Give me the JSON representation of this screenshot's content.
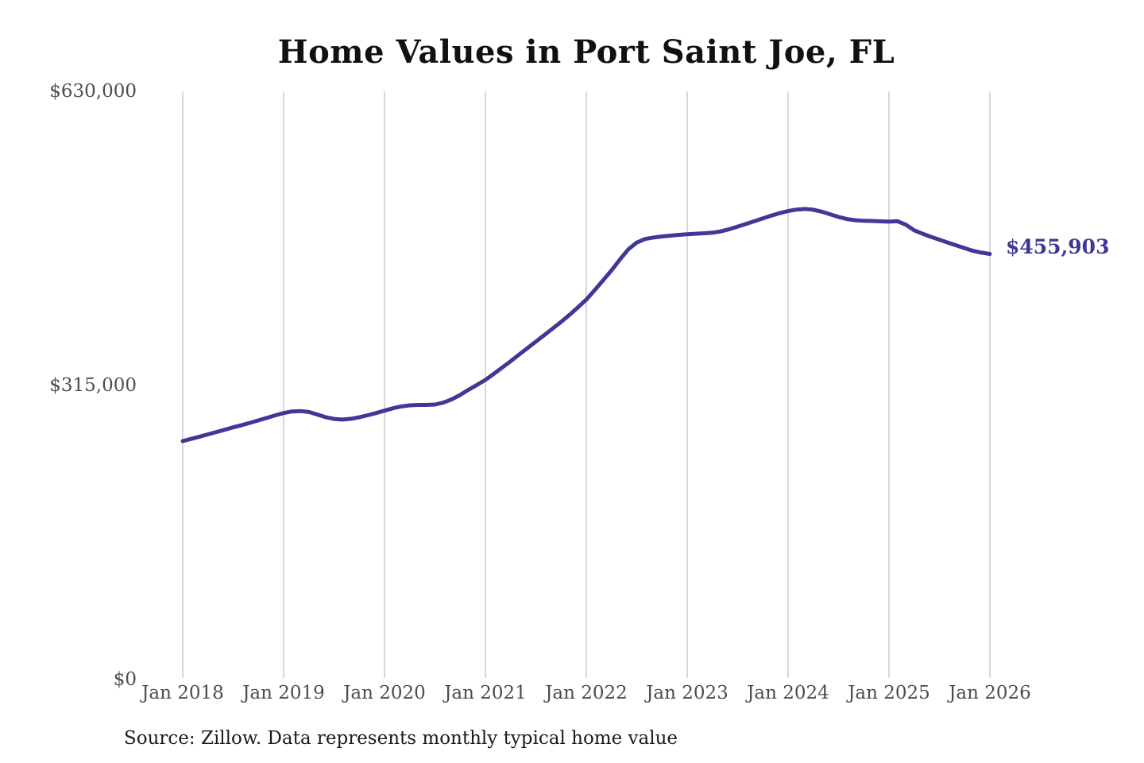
{
  "title": "Home Values in Port Saint Joe, FL",
  "source_note": "Source: Zillow. Data represents monthly typical home value",
  "end_label": "$455,903",
  "colors": {
    "line": "#3f3896",
    "grid": "#cccccc",
    "axis_text": "#4d4d4d",
    "title_text": "#111111",
    "source_text": "#1b1b1b",
    "background": "#ffffff"
  },
  "chart_data": {
    "type": "line",
    "title": "Home Values in Port Saint Joe, FL",
    "xlabel": "",
    "ylabel": "",
    "grid": "vertical-only",
    "legend": "none",
    "ylim": [
      0,
      630000
    ],
    "y_ticks": [
      0,
      315000,
      630000
    ],
    "y_tick_labels": [
      "$0",
      "$315,000",
      "$630,000"
    ],
    "x_tick_labels": [
      "Jan 2018",
      "Jan 2019",
      "Jan 2020",
      "Jan 2021",
      "Jan 2022",
      "Jan 2023",
      "Jan 2024",
      "Jan 2025",
      "Jan 2026"
    ],
    "x_start_month": "2018-01",
    "x_end_month": "2026-01",
    "final_value": 455903,
    "final_value_label": "$455,903",
    "series": [
      {
        "name": "Monthly typical home value",
        "monthly_values": [
          255400,
          257800,
          260200,
          262600,
          265100,
          267600,
          270100,
          272500,
          275000,
          277600,
          280300,
          283000,
          285500,
          287200,
          287600,
          286600,
          283900,
          281000,
          279200,
          278500,
          279300,
          281000,
          283100,
          285500,
          288000,
          290600,
          292600,
          293700,
          294100,
          294100,
          294600,
          296700,
          300200,
          304900,
          310500,
          315600,
          321000,
          327500,
          334200,
          341000,
          348000,
          355000,
          362000,
          369000,
          376000,
          383100,
          390600,
          398600,
          407000,
          417200,
          427700,
          438400,
          449900,
          460800,
          468100,
          471900,
          473500,
          474600,
          475500,
          476300,
          477000,
          477500,
          478000,
          478600,
          480100,
          482400,
          485200,
          488100,
          491100,
          494000,
          496900,
          499600,
          501900,
          503400,
          504100,
          503200,
          501200,
          498400,
          495600,
          493300,
          492000,
          491500,
          491200,
          490800,
          490500,
          491000,
          487200,
          481200,
          477500,
          474200,
          471100,
          468100,
          465100,
          462100,
          459200,
          457300,
          455903
        ]
      }
    ]
  }
}
